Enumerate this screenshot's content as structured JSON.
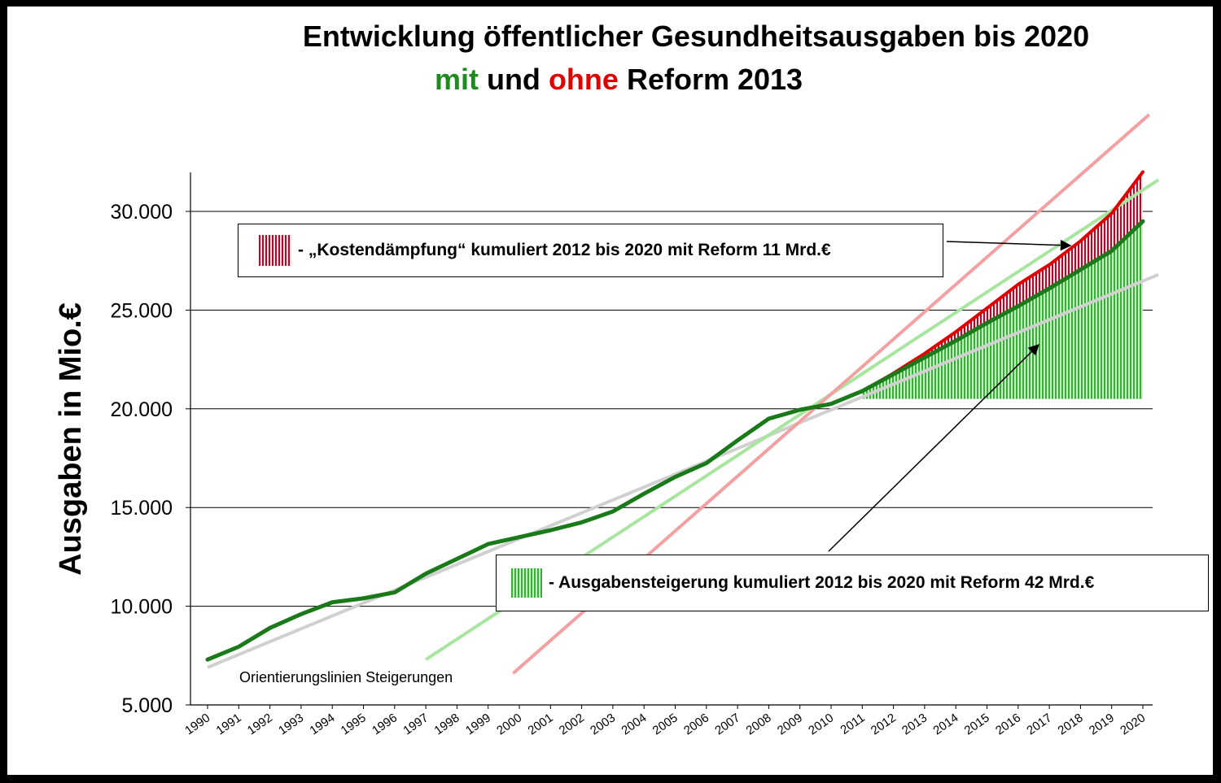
{
  "title": {
    "line1": "Entwicklung öffentlicher Gesundheitsausgaben bis 2020",
    "line2_mit": "mit",
    "line2_und": " und ",
    "line2_ohne": "ohne",
    "line2_rest": " Reform 2013"
  },
  "colors": {
    "with_reform": "#1a7a1a",
    "without_reform": "#e00000",
    "guide_gray": "#d0d0d0",
    "guide_green": "#a8e6a0",
    "guide_red": "#f4a0a0",
    "cost_damping_fill": "#a01030",
    "increase_fill": "#35b035"
  },
  "legend": {
    "cost_damping": "- „Kostendämpfung“ kumuliert 2012 bis 2020 mit Reform 11 Mrd.€",
    "increase": "- Ausgabensteigerung kumuliert 2012 bis 2020 mit Reform 42 Mrd.€"
  },
  "annotation": "Orientierungslinien Steigerungen",
  "chart_data": {
    "type": "line",
    "ylabel": "Ausgaben in Mio.€",
    "xlabel": "",
    "ylim": [
      5000,
      32000
    ],
    "yticks": [
      5000,
      10000,
      15000,
      20000,
      25000,
      30000
    ],
    "ytick_labels": [
      "5.000",
      "10.000",
      "15.000",
      "20.000",
      "25.000",
      "30.000"
    ],
    "grid": true,
    "categories": [
      "1990",
      "1991",
      "1992",
      "1993",
      "1994",
      "1995",
      "1996",
      "1997",
      "1998",
      "1999",
      "2000",
      "2001",
      "2002",
      "2003",
      "2004",
      "2005",
      "2006",
      "2007",
      "2008",
      "2009",
      "2010",
      "2011",
      "2012",
      "2013",
      "2014",
      "2015",
      "2016",
      "2017",
      "2018",
      "2019",
      "2020"
    ],
    "series": [
      {
        "key": "with_reform",
        "values": [
          7300,
          7950,
          8900,
          9600,
          10200,
          10400,
          10700,
          11650,
          12400,
          13150,
          13500,
          13850,
          14250,
          14800,
          15700,
          16550,
          17250,
          18400,
          19500,
          19950,
          20250,
          20900,
          21750,
          22600,
          23450,
          24350,
          25200,
          26100,
          27050,
          28000,
          29500
        ]
      },
      {
        "key": "without_reform",
        "values": [
          null,
          null,
          null,
          null,
          null,
          null,
          null,
          null,
          null,
          null,
          null,
          null,
          null,
          null,
          null,
          null,
          null,
          null,
          null,
          null,
          null,
          20900,
          21800,
          22800,
          23900,
          25100,
          26300,
          27300,
          28500,
          29900,
          32000
        ]
      }
    ],
    "orientation_lines": [
      {
        "key": "guide_gray",
        "x": [
          1990,
          2020.5
        ],
        "y": [
          6900,
          26800
        ]
      },
      {
        "key": "guide_green",
        "x": [
          1997,
          2020.5
        ],
        "y": [
          7300,
          31600
        ]
      },
      {
        "key": "guide_red",
        "x": [
          1999.8,
          2020.2
        ],
        "y": [
          6600,
          34900
        ]
      }
    ],
    "shaded_areas": [
      {
        "key": "increase",
        "from_year": 2011,
        "to_year": 2020,
        "base": 20500,
        "top_series": "with_reform"
      },
      {
        "key": "cost_damping",
        "from_year": 2011,
        "to_year": 2020,
        "lower_series": "with_reform",
        "upper_series": "without_reform"
      }
    ]
  }
}
